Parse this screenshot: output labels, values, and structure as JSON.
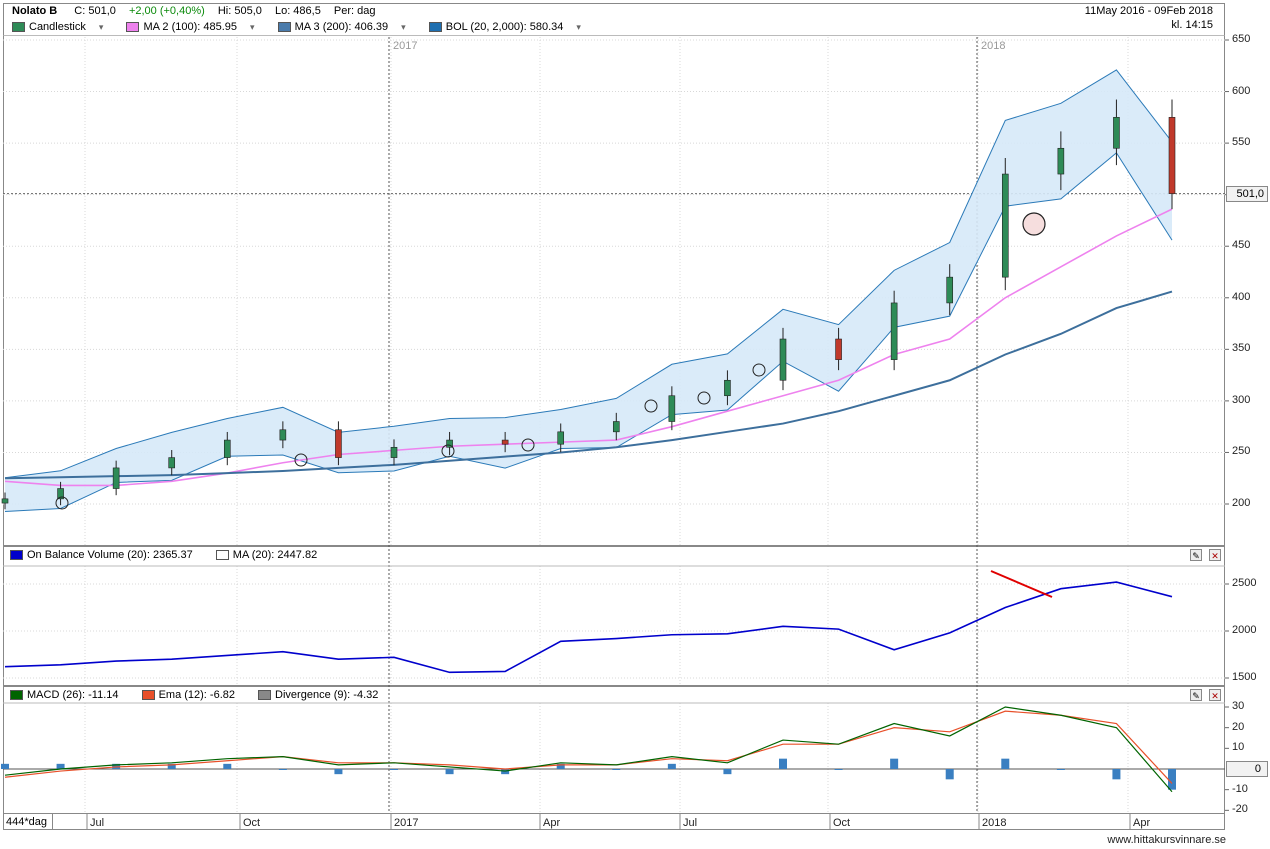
{
  "header": {
    "symbol": "Nolato B",
    "close": "C: 501,0",
    "change": "+2,00 (+0,40%)",
    "high": "Hi: 505,0",
    "low": "Lo: 486,5",
    "period": "Per: dag",
    "date_range": "11May 2016 - 09Feb 2018",
    "time": "kl. 14:15"
  },
  "price_legend": [
    {
      "label": "Candlestick",
      "color": "#2e8b57"
    },
    {
      "label": "MA 2 (100): 485.95",
      "color": "#ee82ee"
    },
    {
      "label": "MA 3 (200): 406.39",
      "color": "#4a7bab"
    },
    {
      "label": "BOL (20, 2,000): 580.34",
      "color": "#1e6fb0"
    }
  ],
  "obv_legend": [
    {
      "label": "On Balance Volume (20): 2365.37",
      "color": "#0000cc"
    },
    {
      "label": "MA (20): 2447.82",
      "color": "#ffffff"
    }
  ],
  "macd_legend": [
    {
      "label": "MACD (26): -11.14",
      "color": "#006400"
    },
    {
      "label": "Ema (12): -6.82",
      "color": "#e8502a"
    },
    {
      "label": "Divergence (9): -4.32",
      "color": "#888888"
    }
  ],
  "last_price_label": "501,0",
  "zero_label": "0",
  "period_label": "444*dag",
  "watermark": "www.hittakursvinnare.se",
  "year_markers": [
    "2017",
    "2018"
  ],
  "x_labels": [
    "Jul",
    "Oct",
    "2017",
    "Apr",
    "Jul",
    "Oct",
    "2018",
    "Apr"
  ],
  "price_ticks": [
    "650",
    "600",
    "550",
    "500",
    "450",
    "400",
    "350",
    "300",
    "250",
    "200"
  ],
  "obv_ticks": [
    "2500",
    "2000",
    "1500"
  ],
  "macd_ticks": [
    "30",
    "20",
    "10",
    "-10",
    "-20"
  ],
  "colors": {
    "ma100": "#ee82ee",
    "ma200": "#3d6f9c",
    "bollinger_fill": "#d6e9f8",
    "bollinger_line": "#2b7ab8",
    "obv": "#0000cc",
    "macd": "#006400",
    "ema": "#e8502a",
    "divergence": "#3a7fc1",
    "trendline": "#e00000"
  },
  "chart_data": [
    {
      "type": "line",
      "title": "Nolato B",
      "ylim": [
        150,
        650
      ],
      "x": [
        "2016-05-11",
        "2016-06",
        "2016-07",
        "2016-08",
        "2016-09",
        "2016-10",
        "2016-11",
        "2016-12",
        "2017-01",
        "2017-02",
        "2017-03",
        "2017-04",
        "2017-05",
        "2017-06",
        "2017-07",
        "2017-08",
        "2017-09",
        "2017-10",
        "2017-11",
        "2017-12",
        "2018-01",
        "2018-02-09"
      ],
      "series": [
        {
          "name": "Candlestick",
          "values": [
            205,
            215,
            235,
            245,
            262,
            272,
            245,
            255,
            262,
            258,
            270,
            280,
            305,
            320,
            360,
            340,
            395,
            420,
            520,
            545,
            575,
            501
          ]
        },
        {
          "name": "MA 2 (100): 485.95",
          "values": [
            222,
            218,
            218,
            222,
            230,
            240,
            248,
            252,
            256,
            258,
            260,
            262,
            275,
            290,
            305,
            320,
            345,
            360,
            400,
            430,
            460,
            486
          ]
        },
        {
          "name": "MA 3 (200): 406.39",
          "values": [
            225,
            226,
            227,
            228,
            230,
            232,
            235,
            238,
            242,
            246,
            250,
            255,
            262,
            270,
            278,
            290,
            305,
            320,
            345,
            365,
            390,
            406
          ]
        }
      ]
    },
    {
      "type": "line",
      "title": "On Balance Volume (20)",
      "ylim": [
        1450,
        2750
      ],
      "x": [
        "2016-05-11",
        "2016-06",
        "2016-07",
        "2016-08",
        "2016-09",
        "2016-10",
        "2016-11",
        "2016-12",
        "2017-01",
        "2017-02",
        "2017-03",
        "2017-04",
        "2017-05",
        "2017-06",
        "2017-07",
        "2017-08",
        "2017-09",
        "2017-10",
        "2017-11",
        "2017-12",
        "2018-01",
        "2018-02-09"
      ],
      "series": [
        {
          "name": "On Balance Volume (20)",
          "values": [
            1620,
            1640,
            1680,
            1700,
            1740,
            1780,
            1700,
            1720,
            1560,
            1570,
            1890,
            1920,
            1960,
            1970,
            2050,
            2020,
            1800,
            1980,
            2250,
            2450,
            2520,
            2365
          ]
        }
      ]
    },
    {
      "type": "line",
      "title": "MACD (26)",
      "ylim": [
        -22,
        35
      ],
      "x": [
        "2016-05-11",
        "2016-06",
        "2016-07",
        "2016-08",
        "2016-09",
        "2016-10",
        "2016-11",
        "2016-12",
        "2017-01",
        "2017-02",
        "2017-03",
        "2017-04",
        "2017-05",
        "2017-06",
        "2017-07",
        "2017-08",
        "2017-09",
        "2017-10",
        "2017-11",
        "2017-12",
        "2018-01",
        "2018-02-09"
      ],
      "series": [
        {
          "name": "MACD (26)",
          "values": [
            -3,
            0,
            2,
            3,
            5,
            6,
            2,
            3,
            1,
            -1,
            3,
            2,
            6,
            3,
            14,
            12,
            22,
            16,
            30,
            26,
            20,
            -11
          ]
        },
        {
          "name": "Ema (12)",
          "values": [
            -4,
            -1,
            1,
            2,
            4,
            6,
            3,
            3,
            2,
            0,
            2,
            2,
            5,
            4,
            12,
            12,
            20,
            18,
            28,
            26,
            22,
            -7
          ]
        },
        {
          "name": "Divergence (9)",
          "values": [
            1,
            1,
            1,
            1,
            1,
            0,
            -1,
            0,
            -1,
            -1,
            1,
            0,
            1,
            -1,
            2,
            0,
            2,
            -2,
            2,
            0,
            -2,
            -4
          ]
        }
      ]
    }
  ]
}
